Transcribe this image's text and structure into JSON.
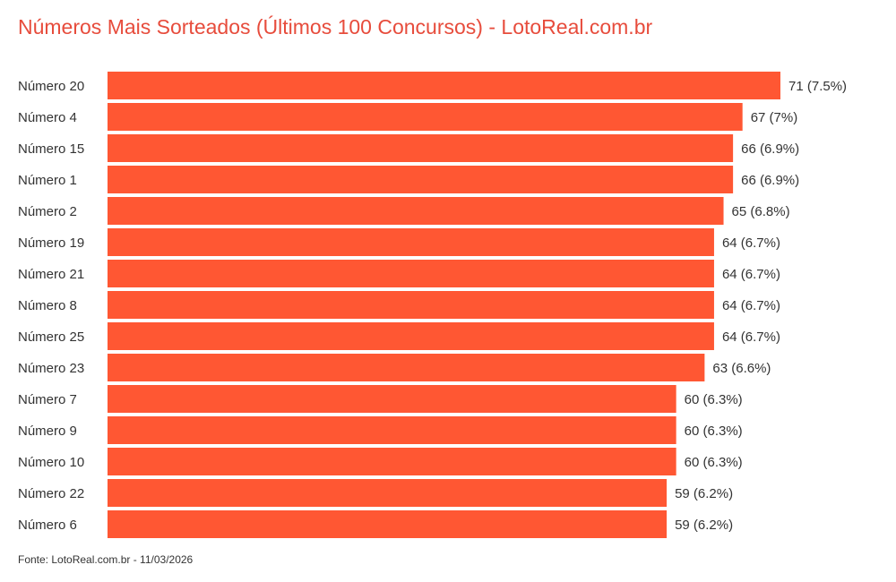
{
  "title": "Números Mais Sorteados (Últimos 100 Concursos) - LotoReal.com.br",
  "footer": "Fonte: LotoReal.com.br - 11/03/2026",
  "chart_data": {
    "type": "bar",
    "orientation": "horizontal",
    "title": "Números Mais Sorteados (Últimos 100 Concursos) - LotoReal.com.br",
    "categories": [
      "Número 20",
      "Número 4",
      "Número 15",
      "Número 1",
      "Número 2",
      "Número 19",
      "Número 21",
      "Número 8",
      "Número 25",
      "Número 23",
      "Número 7",
      "Número 9",
      "Número 10",
      "Número 22",
      "Número 6"
    ],
    "values": [
      71,
      67,
      66,
      66,
      65,
      64,
      64,
      64,
      64,
      63,
      60,
      60,
      60,
      59,
      59
    ],
    "labels": [
      "71 (7.5%)",
      "67 (7%)",
      "66 (6.9%)",
      "66 (6.9%)",
      "65 (6.8%)",
      "64 (6.7%)",
      "64 (6.7%)",
      "64 (6.7%)",
      "64 (6.7%)",
      "63 (6.6%)",
      "60 (6.3%)",
      "60 (6.3%)",
      "60 (6.3%)",
      "59 (6.2%)",
      "59 (6.2%)"
    ],
    "xlim": [
      0,
      71
    ],
    "grid": false,
    "bar_color": "#ff5733",
    "title_color": "#e74c3c"
  }
}
